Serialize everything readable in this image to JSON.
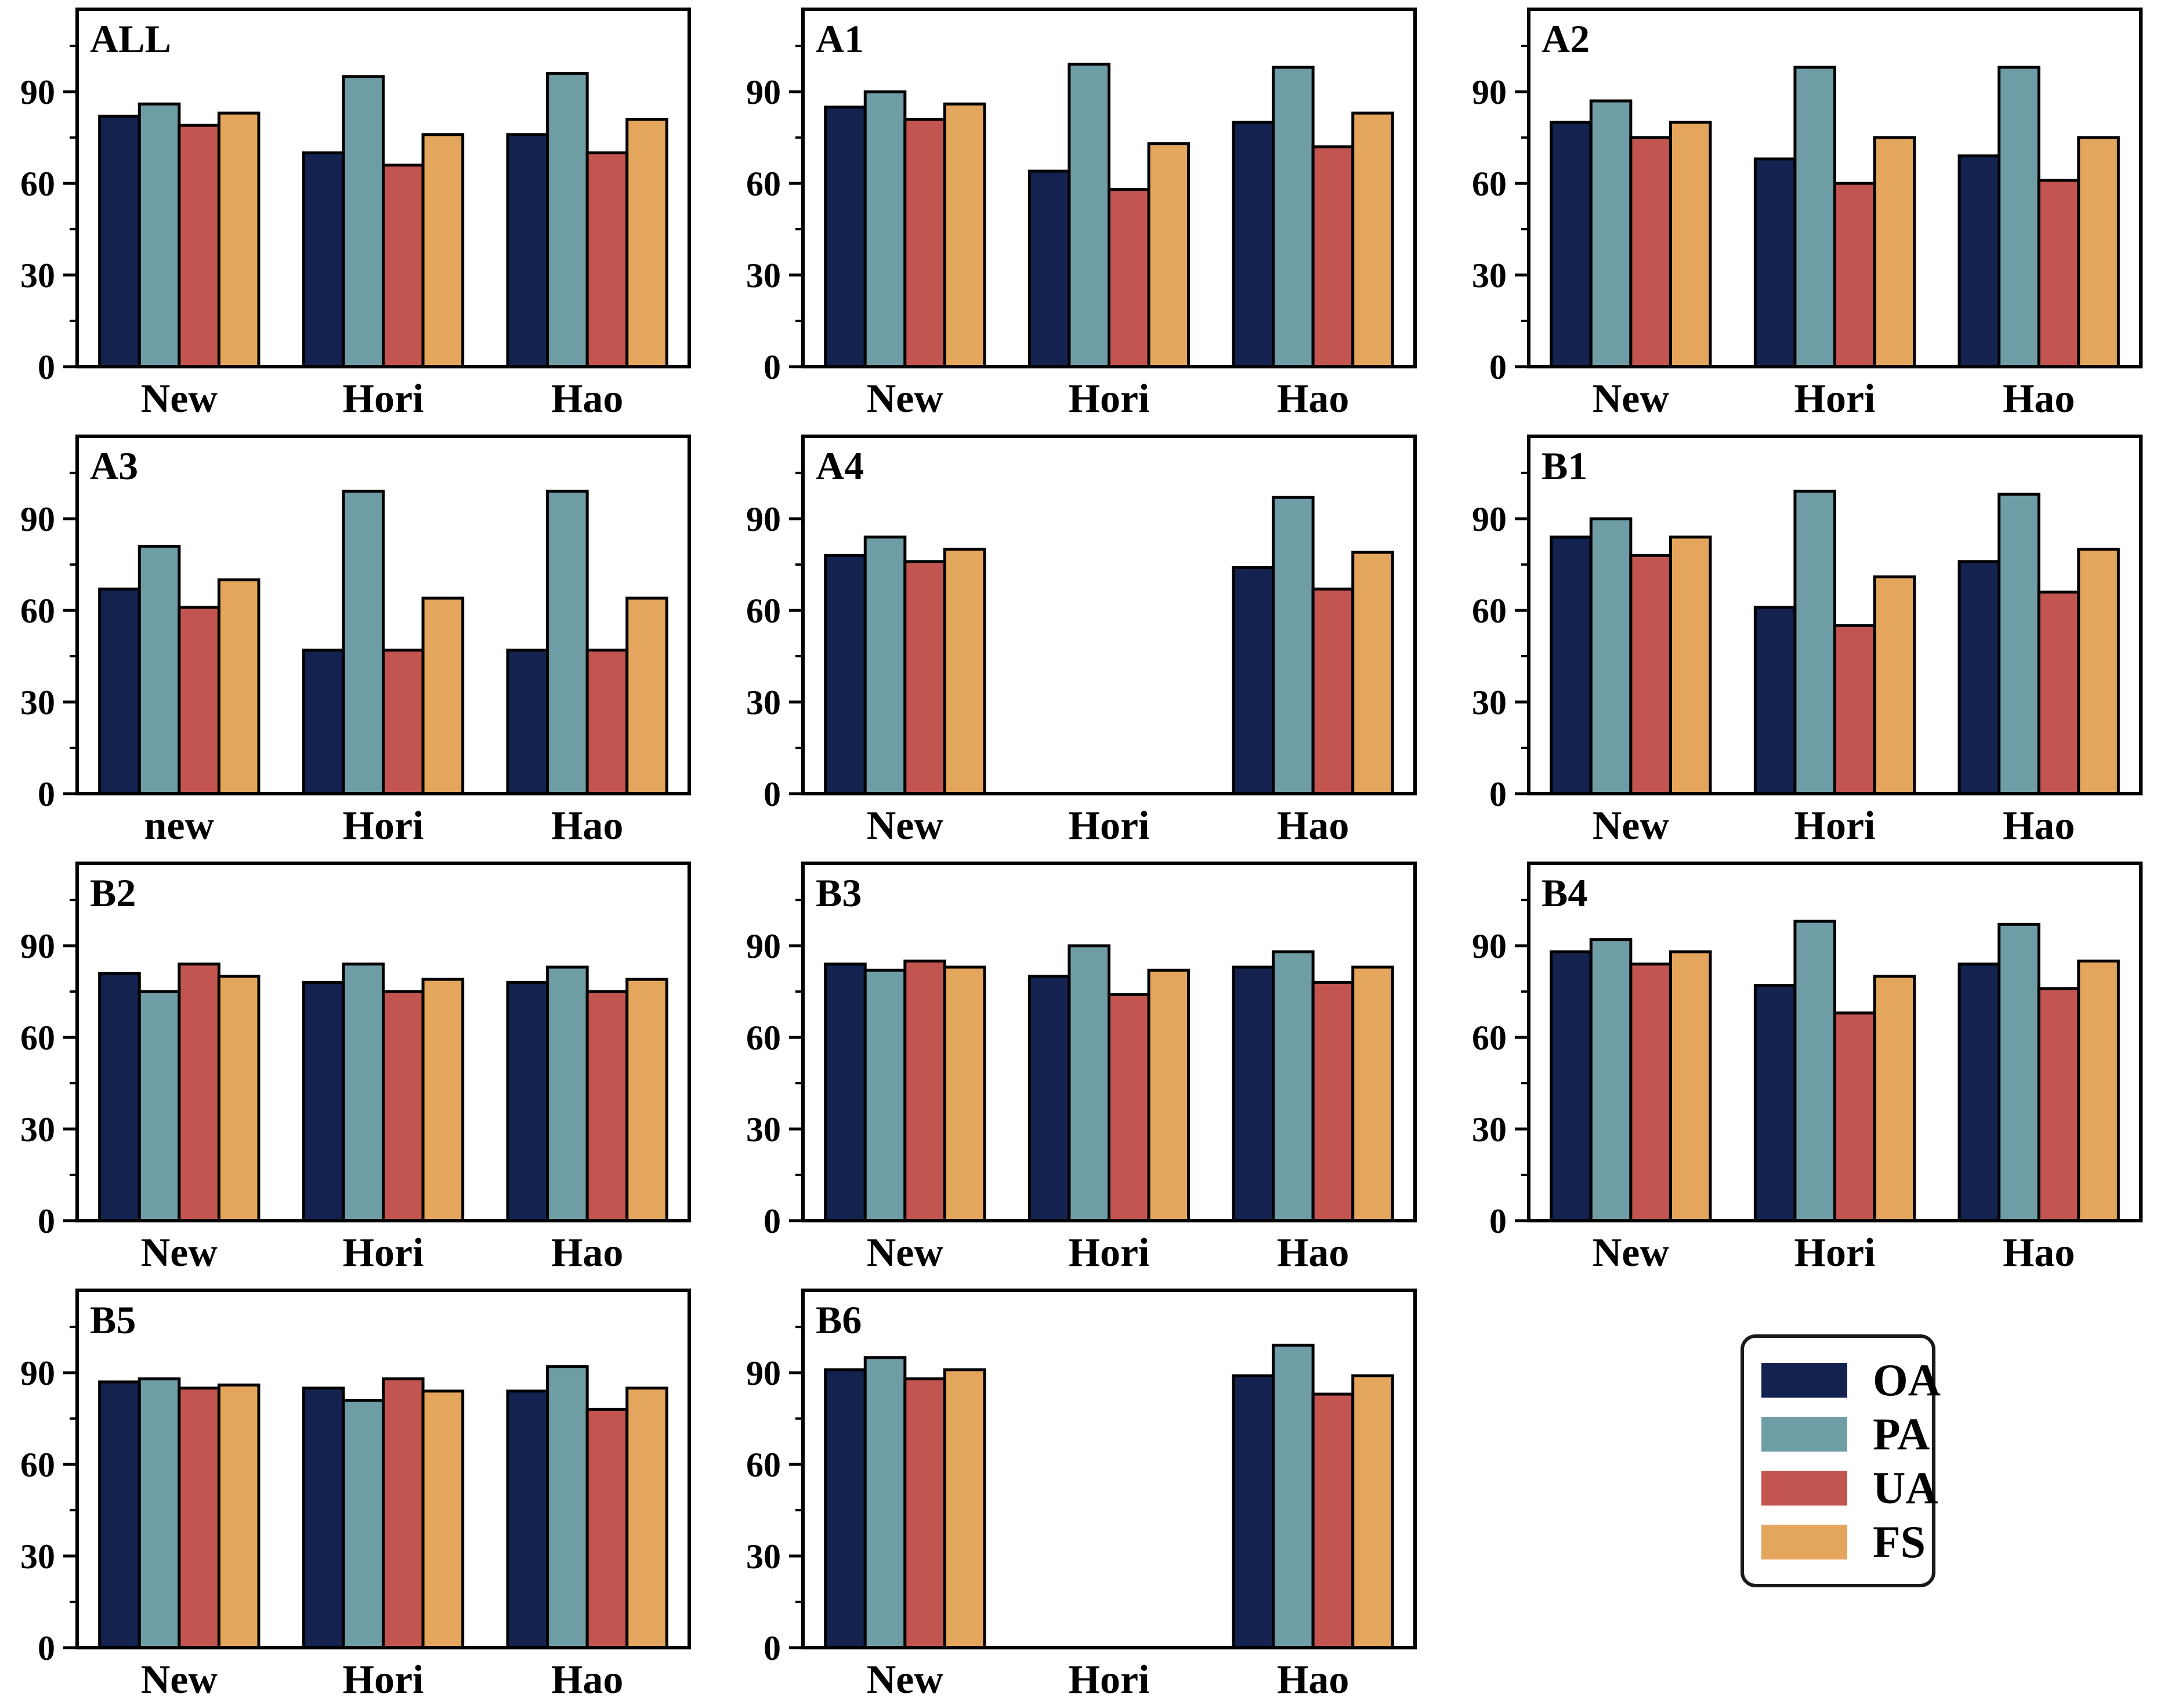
{
  "figure": {
    "background": "#ffffff",
    "grid": "4 rows x 3 cols, last cell is legend"
  },
  "legend": {
    "position": "bottom-right-cell",
    "entries": [
      {
        "label": "OA",
        "color": "#13224f"
      },
      {
        "label": "PA",
        "color": "#6f9da6"
      },
      {
        "label": "UA",
        "color": "#c2554f"
      },
      {
        "label": "FS",
        "color": "#e4a55c"
      }
    ]
  },
  "axis_style": {
    "yticks": [
      0,
      30,
      60,
      90
    ],
    "minor_yticks": [
      15,
      45,
      75,
      105
    ],
    "ylim": [
      0,
      117
    ],
    "bar_edge_color": "#000000",
    "grid": "off",
    "tick_direction": "out"
  },
  "chart_data": [
    {
      "type": "bar",
      "label": "ALL",
      "categories": [
        "New",
        "Hori",
        "Hao"
      ],
      "series": [
        {
          "name": "OA",
          "values": [
            82,
            70,
            76
          ]
        },
        {
          "name": "PA",
          "values": [
            86,
            95,
            96
          ]
        },
        {
          "name": "UA",
          "values": [
            79,
            66,
            70
          ]
        },
        {
          "name": "FS",
          "values": [
            83,
            76,
            81
          ]
        }
      ],
      "yticks": [
        0,
        30,
        60,
        90
      ],
      "ylim": [
        0,
        117
      ]
    },
    {
      "type": "bar",
      "label": "A1",
      "categories": [
        "New",
        "Hori",
        "Hao"
      ],
      "series": [
        {
          "name": "OA",
          "values": [
            85,
            64,
            80
          ]
        },
        {
          "name": "PA",
          "values": [
            90,
            99,
            98
          ]
        },
        {
          "name": "UA",
          "values": [
            81,
            58,
            72
          ]
        },
        {
          "name": "FS",
          "values": [
            86,
            73,
            83
          ]
        }
      ],
      "yticks": [
        0,
        30,
        60,
        90
      ],
      "ylim": [
        0,
        117
      ]
    },
    {
      "type": "bar",
      "label": "A2",
      "categories": [
        "New",
        "Hori",
        "Hao"
      ],
      "series": [
        {
          "name": "OA",
          "values": [
            80,
            68,
            69
          ]
        },
        {
          "name": "PA",
          "values": [
            87,
            98,
            98
          ]
        },
        {
          "name": "UA",
          "values": [
            75,
            60,
            61
          ]
        },
        {
          "name": "FS",
          "values": [
            80,
            75,
            75
          ]
        }
      ],
      "yticks": [
        0,
        30,
        60,
        90
      ],
      "ylim": [
        0,
        117
      ]
    },
    {
      "type": "bar",
      "label": "A3",
      "categories": [
        "new",
        "Hori",
        "Hao"
      ],
      "series": [
        {
          "name": "OA",
          "values": [
            67,
            47,
            47
          ]
        },
        {
          "name": "PA",
          "values": [
            81,
            99,
            99
          ]
        },
        {
          "name": "UA",
          "values": [
            61,
            47,
            47
          ]
        },
        {
          "name": "FS",
          "values": [
            70,
            64,
            64
          ]
        }
      ],
      "yticks": [
        0,
        30,
        60,
        90
      ],
      "ylim": [
        0,
        117
      ]
    },
    {
      "type": "bar",
      "label": "A4",
      "categories": [
        "New",
        "Hori",
        "Hao"
      ],
      "series": [
        {
          "name": "OA",
          "values": [
            78,
            null,
            74
          ]
        },
        {
          "name": "PA",
          "values": [
            84,
            null,
            97
          ]
        },
        {
          "name": "UA",
          "values": [
            76,
            null,
            67
          ]
        },
        {
          "name": "FS",
          "values": [
            80,
            null,
            79
          ]
        }
      ],
      "yticks": [
        0,
        30,
        60,
        90
      ],
      "ylim": [
        0,
        117
      ]
    },
    {
      "type": "bar",
      "label": "B1",
      "categories": [
        "New",
        "Hori",
        "Hao"
      ],
      "series": [
        {
          "name": "OA",
          "values": [
            84,
            61,
            76
          ]
        },
        {
          "name": "PA",
          "values": [
            90,
            99,
            98
          ]
        },
        {
          "name": "UA",
          "values": [
            78,
            55,
            66
          ]
        },
        {
          "name": "FS",
          "values": [
            84,
            71,
            80
          ]
        }
      ],
      "yticks": [
        0,
        30,
        60,
        90
      ],
      "ylim": [
        0,
        117
      ]
    },
    {
      "type": "bar",
      "label": "B2",
      "categories": [
        "New",
        "Hori",
        "Hao"
      ],
      "series": [
        {
          "name": "OA",
          "values": [
            81,
            78,
            78
          ]
        },
        {
          "name": "PA",
          "values": [
            75,
            84,
            83
          ]
        },
        {
          "name": "UA",
          "values": [
            84,
            75,
            75
          ]
        },
        {
          "name": "FS",
          "values": [
            80,
            79,
            79
          ]
        }
      ],
      "yticks": [
        0,
        30,
        60,
        90
      ],
      "ylim": [
        0,
        117
      ]
    },
    {
      "type": "bar",
      "label": "B3",
      "categories": [
        "New",
        "Hori",
        "Hao"
      ],
      "series": [
        {
          "name": "OA",
          "values": [
            84,
            80,
            83
          ]
        },
        {
          "name": "PA",
          "values": [
            82,
            90,
            88
          ]
        },
        {
          "name": "UA",
          "values": [
            85,
            74,
            78
          ]
        },
        {
          "name": "FS",
          "values": [
            83,
            82,
            83
          ]
        }
      ],
      "yticks": [
        0,
        30,
        60,
        90
      ],
      "ylim": [
        0,
        117
      ]
    },
    {
      "type": "bar",
      "label": "B4",
      "categories": [
        "New",
        "Hori",
        "Hao"
      ],
      "series": [
        {
          "name": "OA",
          "values": [
            88,
            77,
            84
          ]
        },
        {
          "name": "PA",
          "values": [
            92,
            98,
            97
          ]
        },
        {
          "name": "UA",
          "values": [
            84,
            68,
            76
          ]
        },
        {
          "name": "FS",
          "values": [
            88,
            80,
            85
          ]
        }
      ],
      "yticks": [
        0,
        30,
        60,
        90
      ],
      "ylim": [
        0,
        117
      ]
    },
    {
      "type": "bar",
      "label": "B5",
      "categories": [
        "New",
        "Hori",
        "Hao"
      ],
      "series": [
        {
          "name": "OA",
          "values": [
            87,
            85,
            84
          ]
        },
        {
          "name": "PA",
          "values": [
            88,
            81,
            92
          ]
        },
        {
          "name": "UA",
          "values": [
            85,
            88,
            78
          ]
        },
        {
          "name": "FS",
          "values": [
            86,
            84,
            85
          ]
        }
      ],
      "yticks": [
        0,
        30,
        60,
        90
      ],
      "ylim": [
        0,
        117
      ]
    },
    {
      "type": "bar",
      "label": "B6",
      "categories": [
        "New",
        "Hori",
        "Hao"
      ],
      "series": [
        {
          "name": "OA",
          "values": [
            91,
            null,
            89
          ]
        },
        {
          "name": "PA",
          "values": [
            95,
            null,
            99
          ]
        },
        {
          "name": "UA",
          "values": [
            88,
            null,
            83
          ]
        },
        {
          "name": "FS",
          "values": [
            91,
            null,
            89
          ]
        }
      ],
      "yticks": [
        0,
        30,
        60,
        90
      ],
      "ylim": [
        0,
        117
      ]
    }
  ]
}
